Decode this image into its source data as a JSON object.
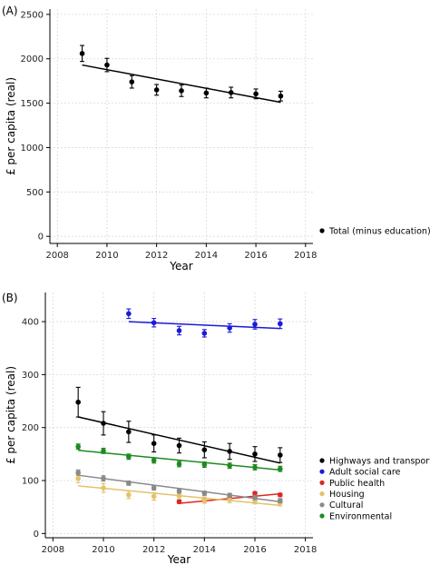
{
  "chart_data": [
    {
      "type": "scatter",
      "panel_label": "(A)",
      "xlabel": "Year",
      "ylabel": "£ per capita (real)",
      "xlim": [
        2007.7,
        2018.3
      ],
      "ylim": [
        -80,
        2560
      ],
      "xticks": [
        2008,
        2010,
        2012,
        2014,
        2016,
        2018
      ],
      "yticks": [
        0,
        500,
        1000,
        1500,
        2000,
        2500
      ],
      "grid": true,
      "legend_position": "right",
      "series": [
        {
          "name": "Total (minus education)",
          "color": "#000000",
          "x": [
            2009,
            2010,
            2011,
            2012,
            2013,
            2014,
            2015,
            2016,
            2017
          ],
          "y": [
            2060,
            1930,
            1740,
            1650,
            1640,
            1615,
            1620,
            1605,
            1580
          ],
          "err": [
            90,
            75,
            70,
            60,
            65,
            55,
            60,
            55,
            55
          ],
          "fit": [
            [
              2009,
              1930
            ],
            [
              2017,
              1510
            ]
          ]
        }
      ]
    },
    {
      "type": "scatter",
      "panel_label": "(B)",
      "xlabel": "Year",
      "ylabel": "£ per capita (real)",
      "xlim": [
        2007.7,
        2018.3
      ],
      "ylim": [
        -8,
        455
      ],
      "xticks": [
        2008,
        2010,
        2012,
        2014,
        2016,
        2018
      ],
      "yticks": [
        0,
        100,
        200,
        300,
        400
      ],
      "grid": true,
      "legend_position": "right",
      "series": [
        {
          "name": "Highways and transport",
          "color": "#000000",
          "x": [
            2009,
            2010,
            2011,
            2012,
            2013,
            2014,
            2015,
            2016,
            2017
          ],
          "y": [
            248,
            208,
            192,
            170,
            166,
            158,
            155,
            150,
            148
          ],
          "err": [
            28,
            22,
            20,
            16,
            14,
            15,
            15,
            14,
            14
          ],
          "fit": [
            [
              2009,
              220
            ],
            [
              2017,
              133
            ]
          ]
        },
        {
          "name": "Adult social care",
          "color": "#1a1adc",
          "x": [
            2011,
            2012,
            2013,
            2014,
            2015,
            2016,
            2017
          ],
          "y": [
            415,
            398,
            383,
            378,
            388,
            395,
            396
          ],
          "err": [
            9,
            8,
            8,
            7,
            8,
            9,
            9
          ],
          "fit": [
            [
              2011,
              400
            ],
            [
              2017,
              387
            ]
          ]
        },
        {
          "name": "Public health",
          "color": "#e0261f",
          "x": [
            2013,
            2014,
            2015,
            2016,
            2017
          ],
          "y": [
            60,
            63,
            68,
            76,
            73
          ],
          "err": [
            3,
            3,
            3,
            3,
            3
          ],
          "fit": [
            [
              2013,
              57
            ],
            [
              2017,
              75
            ]
          ]
        },
        {
          "name": "Housing",
          "color": "#e3c26a",
          "x": [
            2009,
            2010,
            2011,
            2012,
            2013,
            2014,
            2015,
            2016,
            2017
          ],
          "y": [
            104,
            86,
            73,
            70,
            71,
            63,
            64,
            62,
            58
          ],
          "err": [
            8,
            8,
            7,
            7,
            6,
            6,
            6,
            6,
            6
          ],
          "fit": [
            [
              2009,
              90
            ],
            [
              2017,
              53
            ]
          ]
        },
        {
          "name": "Cultural",
          "color": "#8a8a8a",
          "x": [
            2009,
            2010,
            2011,
            2012,
            2013,
            2014,
            2015,
            2016,
            2017
          ],
          "y": [
            115,
            104,
            95,
            86,
            80,
            76,
            72,
            68,
            62
          ],
          "err": [
            5,
            5,
            4,
            4,
            4,
            4,
            4,
            4,
            4
          ],
          "fit": [
            [
              2009,
              110
            ],
            [
              2017,
              60
            ]
          ]
        },
        {
          "name": "Environmental",
          "color": "#1f8a1f",
          "x": [
            2009,
            2010,
            2011,
            2012,
            2013,
            2014,
            2015,
            2016,
            2017
          ],
          "y": [
            164,
            156,
            145,
            138,
            131,
            130,
            128,
            125,
            122
          ],
          "err": [
            5,
            5,
            5,
            5,
            5,
            5,
            5,
            5,
            5
          ],
          "fit": [
            [
              2009,
              157
            ],
            [
              2017,
              120
            ]
          ]
        }
      ]
    }
  ]
}
